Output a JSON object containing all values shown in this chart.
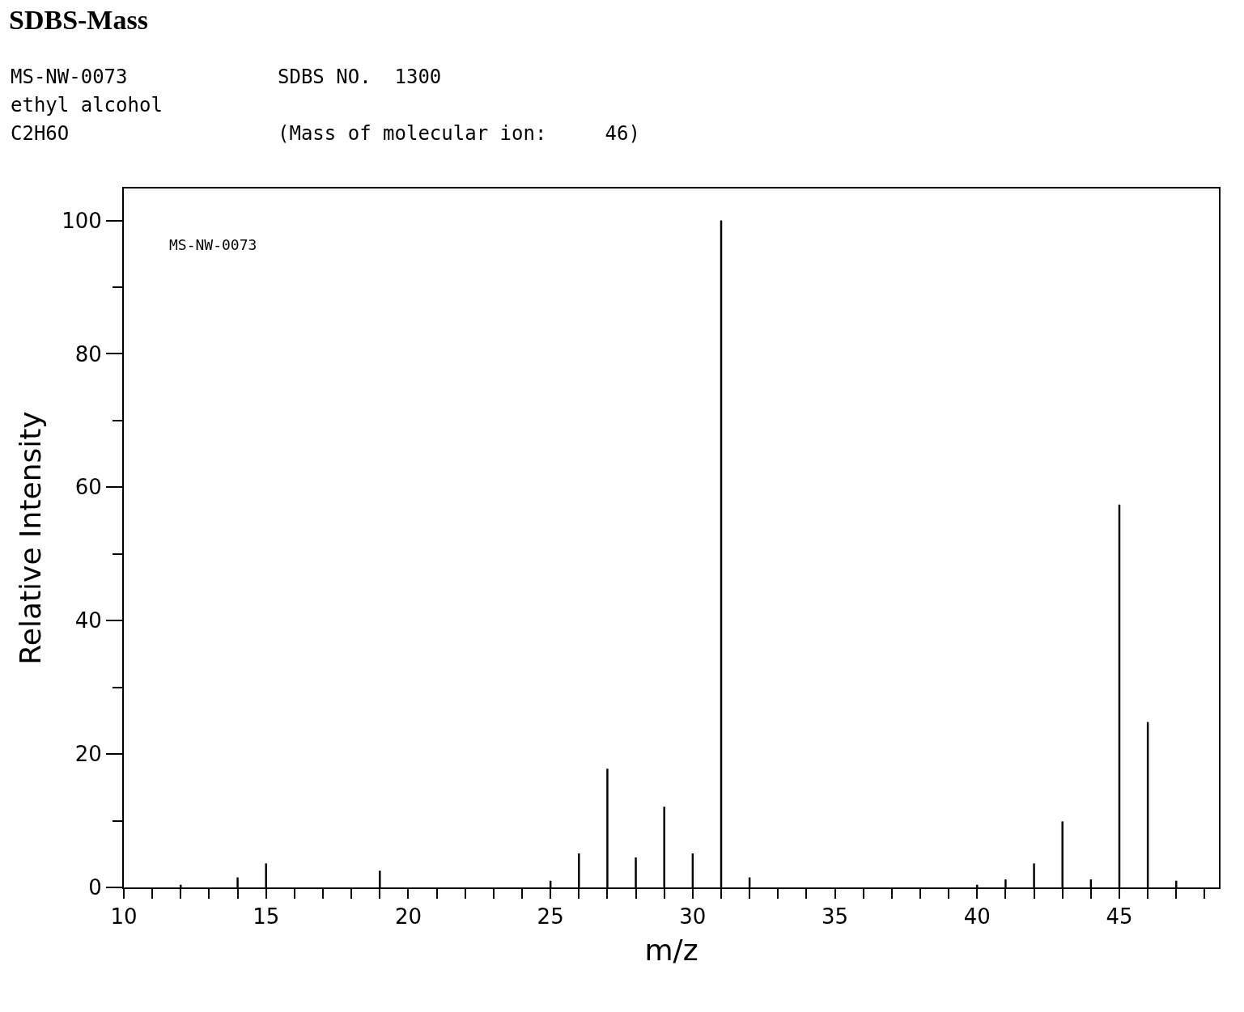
{
  "chart_data": {
    "type": "bar",
    "title": "SDBS-Mass",
    "annotations": [
      "MS-NW-0073",
      "SDBS NO.  1300",
      "ethyl alcohol",
      "C2H6O",
      "(Mass of molecular ion:     46)",
      "MS-NW-0073"
    ],
    "xlabel": "m/z",
    "ylabel": "Relative Intensity",
    "x": [
      12,
      14,
      15,
      19,
      25,
      26,
      27,
      28,
      29,
      30,
      31,
      32,
      40,
      41,
      42,
      43,
      44,
      45,
      46,
      47
    ],
    "values": [
      0.4,
      1.5,
      3.6,
      2.5,
      1.0,
      5.1,
      17.8,
      4.5,
      12.1,
      5.1,
      100,
      1.5,
      0.4,
      1.2,
      3.6,
      9.9,
      1.2,
      57.4,
      24.8,
      1.0
    ],
    "color": "#000000",
    "xlim": [
      10,
      48.5
    ],
    "ylim": [
      0,
      104.8
    ],
    "xticks": [
      10,
      {
        "value": 11,
        "label": null
      },
      {
        "value": 12,
        "label": null
      },
      {
        "value": 13,
        "label": null
      },
      {
        "value": 14,
        "label": null
      },
      15,
      {
        "value": 16,
        "label": null
      },
      {
        "value": 17,
        "label": null
      },
      {
        "value": 18,
        "label": null
      },
      {
        "value": 19,
        "label": null
      },
      20,
      {
        "value": 21,
        "label": null
      },
      {
        "value": 22,
        "label": null
      },
      {
        "value": 23,
        "label": null
      },
      {
        "value": 24,
        "label": null
      },
      25,
      {
        "value": 26,
        "label": null
      },
      {
        "value": 27,
        "label": null
      },
      {
        "value": 28,
        "label": null
      },
      {
        "value": 29,
        "label": null
      },
      30,
      {
        "value": 31,
        "label": null
      },
      {
        "value": 32,
        "label": null
      },
      {
        "value": 33,
        "label": null
      },
      {
        "value": 34,
        "label": null
      },
      35,
      {
        "value": 36,
        "label": null
      },
      {
        "value": 37,
        "label": null
      },
      {
        "value": 38,
        "label": null
      },
      {
        "value": 39,
        "label": null
      },
      40,
      {
        "value": 41,
        "label": null
      },
      {
        "value": 42,
        "label": null
      },
      {
        "value": 43,
        "label": null
      },
      {
        "value": 44,
        "label": null
      },
      45,
      {
        "value": 46,
        "label": null
      },
      {
        "value": 47,
        "label": null
      },
      {
        "value": 48,
        "label": null
      }
    ],
    "yticks": [
      0,
      {
        "value": 10,
        "label": null
      },
      20,
      {
        "value": 30,
        "label": null
      },
      40,
      {
        "value": 50,
        "label": null
      },
      60,
      {
        "value": 70,
        "label": null
      },
      80,
      {
        "value": 90,
        "label": null
      },
      100
    ],
    "line_style": "solid"
  }
}
